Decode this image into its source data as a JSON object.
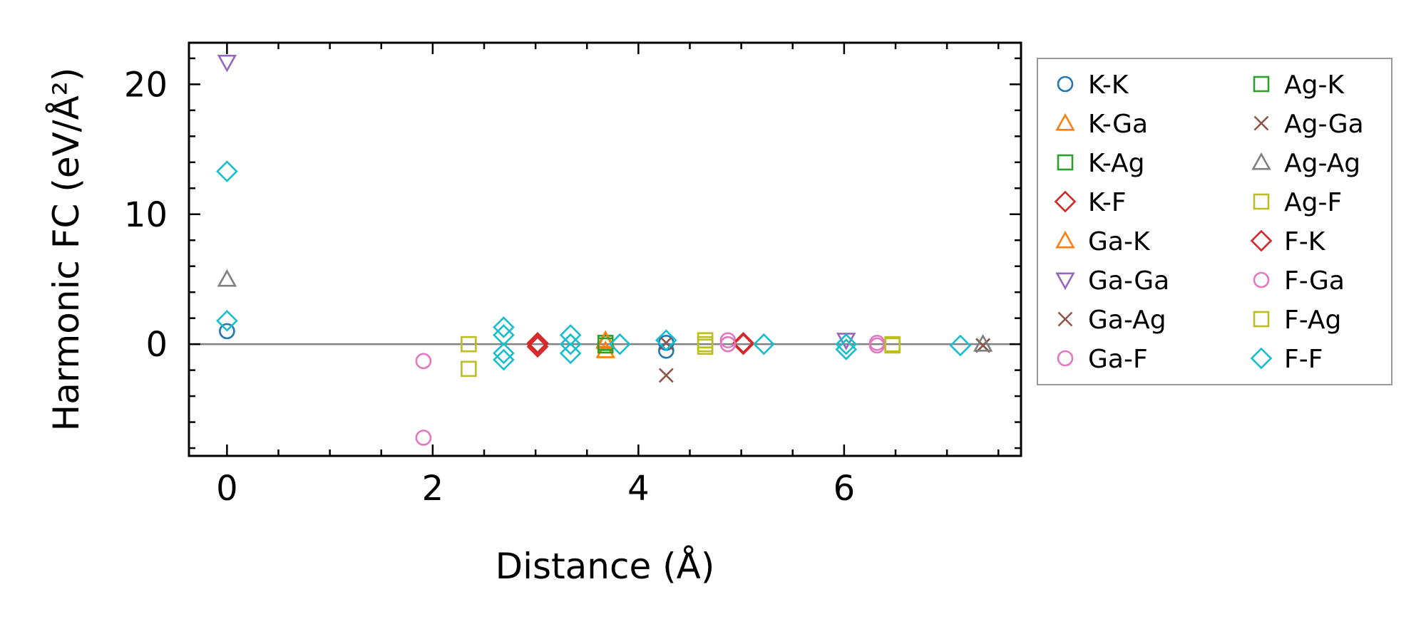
{
  "chart_data": {
    "type": "scatter",
    "xlabel": "Distance (Å)",
    "ylabel": "Harmonic FC (eV/Å²)",
    "xlim": [
      -0.37,
      7.72
    ],
    "ylim": [
      -8.6,
      23.2
    ],
    "xticks": [
      0,
      2,
      4,
      6
    ],
    "xtick_labels": [
      "0",
      "2",
      "4",
      "6"
    ],
    "yticks": [
      0,
      10,
      20
    ],
    "ytick_labels": [
      "0",
      "10",
      "20"
    ],
    "x_minor_step": 0.5,
    "y_minor_step": 2,
    "reference_line": {
      "y": 0,
      "color": "#808080"
    },
    "grid": false,
    "legend_position": "outside-right",
    "legend_columns": 2,
    "series": [
      {
        "name": "K-K",
        "marker": "circle",
        "color": "#1f77b4",
        "points": [
          [
            0,
            1.0
          ],
          [
            4.27,
            -0.5
          ],
          [
            4.27,
            0.1
          ]
        ]
      },
      {
        "name": "K-Ga",
        "marker": "triangle-up",
        "color": "#ff7f0e",
        "points": [
          [
            3.68,
            0.2
          ],
          [
            3.68,
            -0.5
          ]
        ]
      },
      {
        "name": "K-Ag",
        "marker": "square",
        "color": "#2ca02c",
        "points": [
          [
            3.68,
            0.1
          ]
        ]
      },
      {
        "name": "K-F",
        "marker": "diamond",
        "color": "#d62728",
        "points": [
          [
            3.02,
            0.1
          ],
          [
            3.02,
            -0.2
          ],
          [
            5.02,
            0.0
          ]
        ]
      },
      {
        "name": "Ga-K",
        "marker": "triangle-up",
        "color": "#ff7f0e",
        "points": [
          [
            3.68,
            0.3
          ]
        ]
      },
      {
        "name": "Ga-Ga",
        "marker": "triangle-down",
        "color": "#9467bd",
        "points": [
          [
            0,
            21.7
          ],
          [
            6.02,
            0.3
          ]
        ]
      },
      {
        "name": "Ga-Ag",
        "marker": "x",
        "color": "#8c564b",
        "points": [
          [
            4.27,
            -2.4
          ],
          [
            7.35,
            -0.1
          ],
          [
            4.27,
            0.1
          ]
        ]
      },
      {
        "name": "Ga-F",
        "marker": "circle",
        "color": "#e377c2",
        "points": [
          [
            1.91,
            -1.3
          ],
          [
            1.91,
            -7.2
          ],
          [
            4.87,
            0.3
          ]
        ]
      },
      {
        "name": "Ag-K",
        "marker": "square",
        "color": "#2ca02c",
        "points": [
          [
            3.68,
            -0.1
          ]
        ]
      },
      {
        "name": "Ag-Ga",
        "marker": "x",
        "color": "#8c564b",
        "points": [
          [
            7.35,
            -0.1
          ]
        ]
      },
      {
        "name": "Ag-Ag",
        "marker": "triangle-up",
        "color": "#7f7f7f",
        "points": [
          [
            0,
            5.0
          ],
          [
            7.35,
            0.0
          ]
        ]
      },
      {
        "name": "Ag-F",
        "marker": "square",
        "color": "#bcbd22",
        "points": [
          [
            2.35,
            0.0
          ],
          [
            2.35,
            -1.9
          ],
          [
            4.65,
            0.3
          ],
          [
            4.65,
            -0.2
          ],
          [
            6.47,
            0.0
          ]
        ]
      },
      {
        "name": "F-K",
        "marker": "diamond",
        "color": "#d62728",
        "points": [
          [
            3.02,
            0.0
          ],
          [
            5.02,
            0.1
          ]
        ]
      },
      {
        "name": "F-Ga",
        "marker": "circle",
        "color": "#e377c2",
        "points": [
          [
            4.87,
            0.0
          ],
          [
            6.32,
            0.1
          ],
          [
            6.32,
            -0.1
          ]
        ]
      },
      {
        "name": "F-Ag",
        "marker": "square",
        "color": "#bcbd22",
        "points": [
          [
            4.65,
            0.0
          ],
          [
            6.47,
            -0.1
          ]
        ]
      },
      {
        "name": "F-F",
        "marker": "diamond",
        "color": "#17becf",
        "points": [
          [
            0,
            13.3
          ],
          [
            0,
            1.8
          ],
          [
            2.69,
            1.3
          ],
          [
            2.69,
            0.7
          ],
          [
            2.69,
            -0.7
          ],
          [
            2.69,
            -1.2
          ],
          [
            3.34,
            0.7
          ],
          [
            3.34,
            0.0
          ],
          [
            3.34,
            -0.7
          ],
          [
            3.82,
            0.0
          ],
          [
            4.27,
            0.3
          ],
          [
            5.22,
            0.0
          ],
          [
            6.02,
            0.0
          ],
          [
            6.02,
            -0.4
          ],
          [
            7.13,
            -0.1
          ]
        ]
      }
    ]
  }
}
